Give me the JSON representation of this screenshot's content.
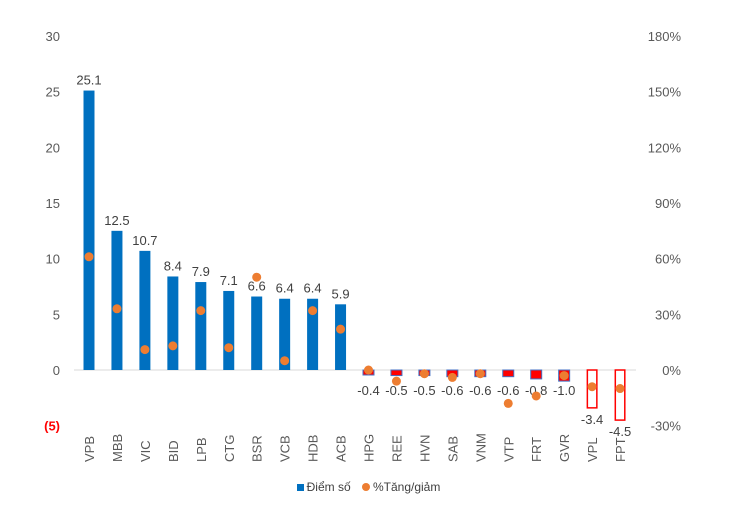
{
  "chart_data": {
    "type": "bar",
    "categories": [
      "VPB",
      "MBB",
      "VIC",
      "BID",
      "LPB",
      "CTG",
      "BSR",
      "VCB",
      "HDB",
      "ACB",
      "HPG",
      "REE",
      "HVN",
      "SAB",
      "VNM",
      "VTP",
      "FRT",
      "GVR",
      "VPL",
      "FPT"
    ],
    "series": [
      {
        "name": "Điểm số",
        "type": "bar",
        "axis": "left",
        "color": "#0070C0",
        "values": [
          25.1,
          12.5,
          10.7,
          8.4,
          7.9,
          7.1,
          6.6,
          6.4,
          6.4,
          5.9,
          -0.4,
          -0.5,
          -0.5,
          -0.6,
          -0.6,
          -0.6,
          -0.8,
          -1.0,
          -3.4,
          -4.5
        ],
        "data_labels": [
          "25.1",
          "12.5",
          "10.7",
          "8.4",
          "7.9",
          "7.1",
          "6.6",
          "6.4",
          "6.4",
          "5.9",
          "-0.4",
          "-0.5",
          "-0.5",
          "-0.6",
          "-0.6",
          "-0.6",
          "-0.8",
          "-1.0",
          "-3.4",
          "-4.5"
        ]
      },
      {
        "name": "%Tăng/giảm",
        "type": "scatter",
        "axis": "right",
        "color": "#ED7D31",
        "values": [
          61,
          33,
          11,
          13,
          32,
          12,
          50,
          5,
          32,
          22,
          0,
          -6,
          -2,
          -4,
          -2,
          -18,
          -14,
          -3,
          -9,
          -10
        ]
      }
    ],
    "negative_bar_color": "#FF0000",
    "left_axis": {
      "ylim": [
        -5,
        30
      ],
      "ticks": [
        "(5)",
        "0",
        "5",
        "10",
        "15",
        "20",
        "25",
        "30"
      ],
      "tick_values": [
        -5,
        0,
        5,
        10,
        15,
        20,
        25,
        30
      ],
      "negative_tick_color": "#FF0000"
    },
    "right_axis": {
      "ylim": [
        -30,
        180
      ],
      "ticks": [
        "-30%",
        "0%",
        "30%",
        "60%",
        "90%",
        "120%",
        "150%",
        "180%"
      ],
      "tick_values": [
        -30,
        0,
        30,
        60,
        90,
        120,
        150,
        180
      ]
    },
    "grid": false,
    "legend_position": "bottom"
  }
}
